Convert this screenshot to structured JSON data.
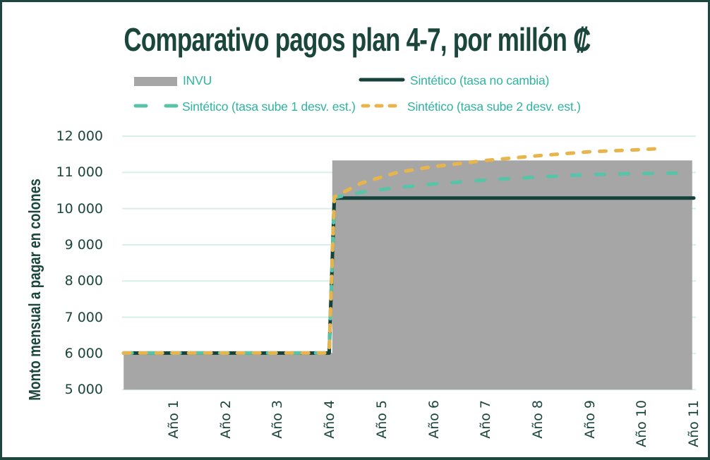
{
  "colors": {
    "frame_border": "#1c463e",
    "title_text": "#1b463c",
    "axis_text": "#1b463c",
    "legend_text": "#2fb4a0",
    "gridline": "#d6efe9",
    "background": "#ffffff"
  },
  "chart_data": {
    "type": "line",
    "subtype": "step-area (INVU) with three line series overlaid",
    "title": "Comparativo pagos plan 4-7, por millón ₡",
    "ylabel": "Monto mensual a pagar en colones",
    "xlabel": "",
    "ylim": [
      5000,
      12000
    ],
    "ytick_values": [
      12000,
      11000,
      10000,
      9000,
      8000,
      7000,
      6000,
      5000
    ],
    "ytick_labels": [
      "12 000",
      "11 000",
      "10 000",
      "9 000",
      "8 000",
      "7 000",
      "6 000",
      "5 000"
    ],
    "x_categories": [
      "Año 1",
      "Año 2",
      "Año 3",
      "Año 4",
      "Año 5",
      "Año 6",
      "Año 7",
      "Año 8",
      "Año 9",
      "Año 10",
      "Año 11"
    ],
    "grid": "horizontal gridlines only",
    "legend_position": "top center, two rows",
    "series": [
      {
        "name": "INVU",
        "type": "area",
        "color": "#a6a6a6",
        "baseline": 5000,
        "points": [
          [
            0.04,
            6010
          ],
          [
            4.05,
            6010
          ],
          [
            4.05,
            11330
          ],
          [
            10.97,
            11330
          ]
        ]
      },
      {
        "name": "Sintético (tasa no cambia)",
        "type": "line",
        "dash": "solid",
        "color": "#15423a",
        "points": [
          [
            0.04,
            6010
          ],
          [
            3.99,
            6010
          ],
          [
            4.09,
            10290
          ],
          [
            11.0,
            10290
          ]
        ]
      },
      {
        "name": "Sintético (tasa sube 1 desv. est.)",
        "type": "line",
        "dash": "long-dash",
        "color": "#57c3a7",
        "points": [
          [
            0.04,
            6010
          ],
          [
            3.99,
            6010
          ],
          [
            4.09,
            10300
          ],
          [
            4.6,
            10450
          ],
          [
            5.3,
            10580
          ],
          [
            6.0,
            10680
          ],
          [
            7.0,
            10790
          ],
          [
            8.0,
            10870
          ],
          [
            9.0,
            10940
          ],
          [
            10.0,
            10970
          ],
          [
            10.69,
            10980
          ]
        ]
      },
      {
        "name": "Sintético (tasa sube 2 desv. est.)",
        "type": "line",
        "dash": "short-dash",
        "color": "#e7b54c",
        "points": [
          [
            0.04,
            6010
          ],
          [
            3.99,
            6010
          ],
          [
            4.09,
            10320
          ],
          [
            4.6,
            10700
          ],
          [
            5.3,
            11000
          ],
          [
            6.0,
            11160
          ],
          [
            7.0,
            11330
          ],
          [
            8.0,
            11460
          ],
          [
            9.0,
            11570
          ],
          [
            10.0,
            11630
          ],
          [
            10.25,
            11650
          ]
        ]
      }
    ]
  }
}
